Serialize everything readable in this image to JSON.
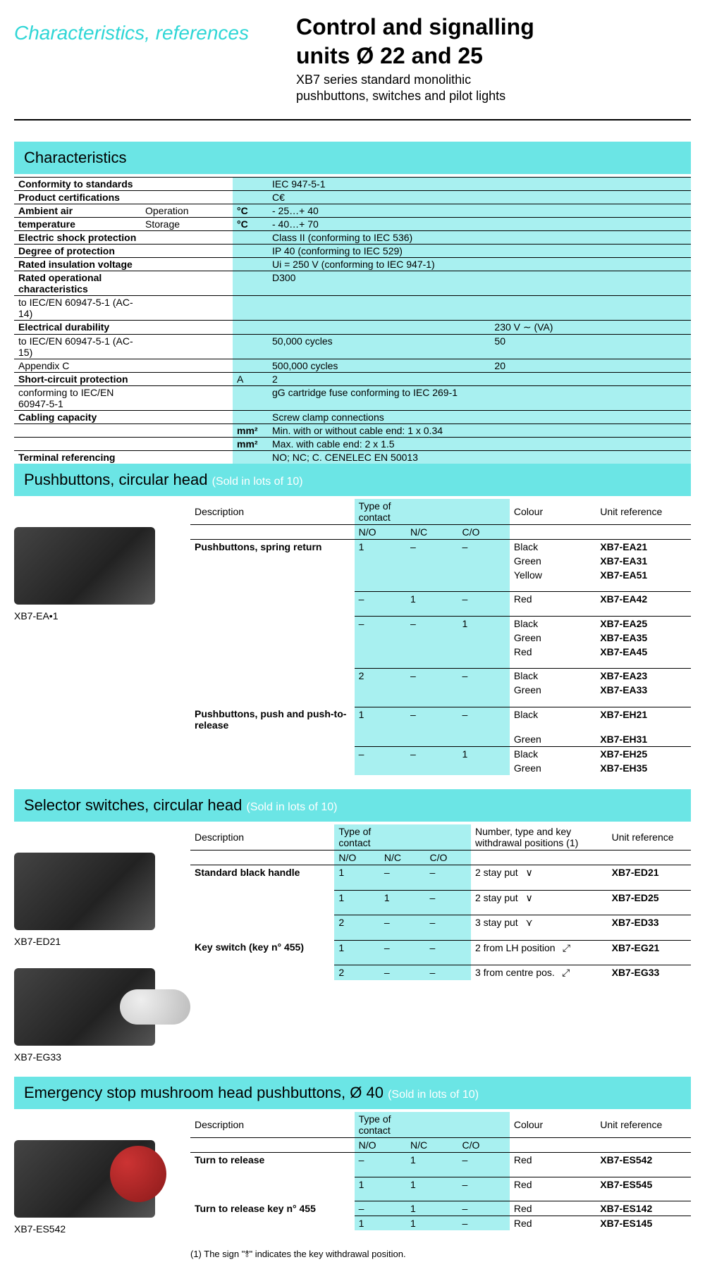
{
  "header": {
    "left": "Characteristics, references",
    "title1": "Control and signalling",
    "title2": "units Ø 22 and 25",
    "sub1": "XB7 series standard monolithic",
    "sub2": "pushbuttons, switches and pilot lights"
  },
  "sections": {
    "char_title": "Characteristics",
    "push_title": "Pushbuttons, circular head",
    "sel_title": "Selector switches, circular head",
    "em_title": "Emergency stop mushroom head pushbuttons, Ø 40",
    "lot_note": "(Sold in lots of 10)"
  },
  "char": [
    {
      "l": "Conformity to standards",
      "u": "",
      "v": "IEC 947-5-1"
    },
    {
      "l": "Product certifications",
      "u": "",
      "v": "C€"
    },
    {
      "l": "Ambient air",
      "l2": "Operation",
      "u": "°C",
      "v": "- 25…+ 40"
    },
    {
      "l": "temperature",
      "l2": "Storage",
      "u": "°C",
      "v": "- 40…+ 70"
    },
    {
      "l": "Electric shock protection",
      "u": "",
      "v": "Class II (conforming to IEC 536)"
    },
    {
      "l": "Degree of protection",
      "u": "",
      "v": "IP 40 (conforming to IEC 529)"
    },
    {
      "l": "Rated insulation voltage",
      "u": "",
      "v": "Ui = 250 V (conforming to IEC 947-1)"
    },
    {
      "l": "Rated operational characteristics",
      "l3": "to IEC/EN 60947-5-1 (AC-14)",
      "u": "",
      "v": "D300"
    },
    {
      "l": "Electrical durability",
      "l3": "to IEC/EN 60947-5-1 (AC-15)",
      "l4": "Appendix C",
      "u": "",
      "v": "",
      "v2a": "50,000 cycles",
      "v2b": "500,000 cycles",
      "r1": "230 V ∼ (VA)",
      "r2": "50",
      "r3": "20"
    },
    {
      "l": "Short-circuit protection",
      "l3": "conforming to IEC/EN 60947-5-1",
      "u": "A",
      "v": "2",
      "v2": "gG cartridge fuse conforming to IEC 269-1"
    },
    {
      "l": "Cabling capacity",
      "u": "",
      "v": "Screw clamp connections",
      "u2": "mm²",
      "v2a": "Min. with or without cable end: 1 x 0.34",
      "u3": "mm²",
      "v2b": "Max. with cable end: 2 x 1.5"
    },
    {
      "l": "Terminal referencing",
      "u": "",
      "v": "NO; NC; C. CENELEC EN 50013"
    }
  ],
  "push_headers": {
    "desc": "Description",
    "toc": "Type of contact",
    "no": "N/O",
    "nc": "N/C",
    "co": "C/O",
    "colour": "Colour",
    "ref": "Unit reference"
  },
  "push": [
    {
      "desc": "Pushbuttons, spring return",
      "no": "1",
      "nc": "–",
      "co": "–",
      "colour": "Black",
      "ref": "XB7-EA21",
      "top": true
    },
    {
      "desc": "",
      "no": "",
      "nc": "",
      "co": "",
      "colour": "Green",
      "ref": "XB7-EA31"
    },
    {
      "desc": "",
      "no": "",
      "nc": "",
      "co": "",
      "colour": "Yellow",
      "ref": "XB7-EA51"
    },
    {
      "desc": "",
      "no": "–",
      "nc": "1",
      "co": "–",
      "colour": "Red",
      "ref": "XB7-EA42",
      "top": true,
      "gap": true
    },
    {
      "desc": "",
      "no": "–",
      "nc": "–",
      "co": "1",
      "colour": "Black",
      "ref": "XB7-EA25",
      "top": true,
      "gap": true
    },
    {
      "desc": "",
      "no": "",
      "nc": "",
      "co": "",
      "colour": "Green",
      "ref": "XB7-EA35"
    },
    {
      "desc": "",
      "no": "",
      "nc": "",
      "co": "",
      "colour": "Red",
      "ref": "XB7-EA45"
    },
    {
      "desc": "",
      "no": "2",
      "nc": "–",
      "co": "–",
      "colour": "Black",
      "ref": "XB7-EA23",
      "top": true,
      "gap": true
    },
    {
      "desc": "",
      "no": "",
      "nc": "",
      "co": "",
      "colour": "Green",
      "ref": "XB7-EA33"
    },
    {
      "desc": "Pushbuttons, push and push-to-release",
      "no": "1",
      "nc": "–",
      "co": "–",
      "colour": "Black",
      "ref": "XB7-EH21",
      "top": true,
      "gap": true
    },
    {
      "desc": "",
      "no": "",
      "nc": "",
      "co": "",
      "colour": "Green",
      "ref": "XB7-EH31"
    },
    {
      "desc": "",
      "no": "–",
      "nc": "–",
      "co": "1",
      "colour": "Black",
      "ref": "XB7-EH25",
      "top": true
    },
    {
      "desc": "",
      "no": "",
      "nc": "",
      "co": "",
      "colour": "Green",
      "ref": "XB7-EH35"
    }
  ],
  "push_img": "XB7-EA•1",
  "sel_headers": {
    "desc": "Description",
    "toc": "Type of contact",
    "no": "N/O",
    "nc": "N/C",
    "co": "C/O",
    "pos": "Number, type and key withdrawal positions (1)",
    "ref": "Unit reference"
  },
  "sel": [
    {
      "desc": "Standard black handle",
      "no": "1",
      "nc": "–",
      "co": "–",
      "pos": "2 stay put",
      "sym": "∨",
      "ref": "XB7-ED21",
      "top": true
    },
    {
      "desc": "",
      "no": "1",
      "nc": "1",
      "co": "–",
      "pos": "2 stay put",
      "sym": "∨",
      "ref": "XB7-ED25",
      "top": true,
      "gap": true
    },
    {
      "desc": "",
      "no": "2",
      "nc": "–",
      "co": "–",
      "pos": "3 stay put",
      "sym": "⋎",
      "ref": "XB7-ED33",
      "top": true,
      "gap": true
    },
    {
      "desc": "Key switch (key n° 455)",
      "no": "1",
      "nc": "–",
      "co": "–",
      "pos": "2 from LH position",
      "sym": "⤢",
      "ref": "XB7-EG21",
      "top": true,
      "gap": true
    },
    {
      "desc": "",
      "no": "2",
      "nc": "–",
      "co": "–",
      "pos": "3 from centre pos.",
      "sym": "⤢",
      "ref": "XB7-EG33",
      "top": true,
      "gap": true
    }
  ],
  "sel_img1": "XB7-ED21",
  "sel_img2": "XB7-EG33",
  "em_headers": {
    "desc": "Description",
    "toc": "Type of contact",
    "no": "N/O",
    "nc": "N/C",
    "co": "C/O",
    "colour": "Colour",
    "ref": "Unit reference"
  },
  "em": [
    {
      "desc": "Turn to release",
      "no": "–",
      "nc": "1",
      "co": "–",
      "colour": "Red",
      "ref": "XB7-ES542",
      "top": true
    },
    {
      "desc": "",
      "no": "1",
      "nc": "1",
      "co": "–",
      "colour": "Red",
      "ref": "XB7-ES545",
      "top": true,
      "gap": true
    },
    {
      "desc": "Turn to release key n° 455",
      "no": "–",
      "nc": "1",
      "co": "–",
      "colour": "Red",
      "ref": "XB7-ES142",
      "top": true,
      "gap": true
    },
    {
      "desc": "",
      "no": "1",
      "nc": "1",
      "co": "–",
      "colour": "Red",
      "ref": "XB7-ES145",
      "top": true
    }
  ],
  "em_img": "XB7-ES542",
  "footnote": "(1) The sign \"⥉\" indicates the key withdrawal position.",
  "colors": {
    "cyan_bar": "#6be5e5",
    "cyan_cell": "#a8f0f0",
    "accent": "#2fd6d6"
  }
}
